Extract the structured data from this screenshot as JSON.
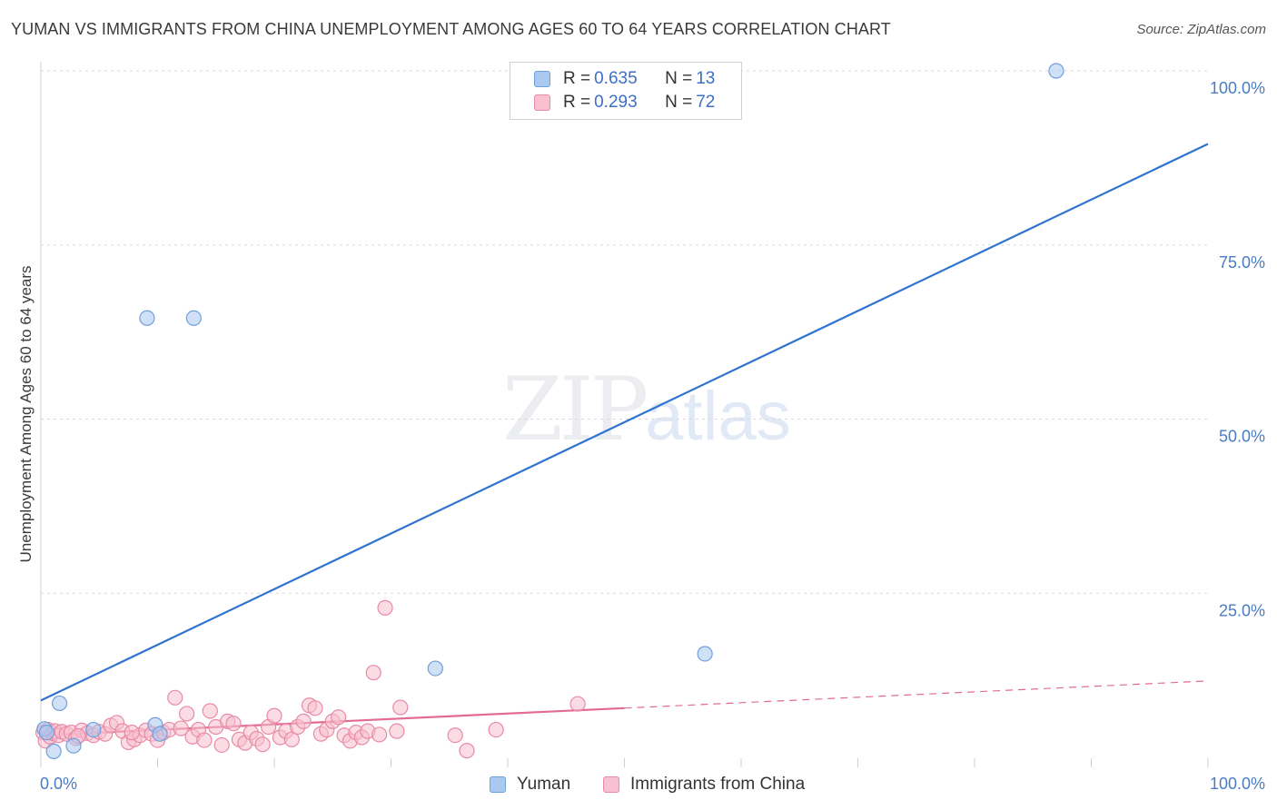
{
  "title": "YUMAN VS IMMIGRANTS FROM CHINA UNEMPLOYMENT AMONG AGES 60 TO 64 YEARS CORRELATION CHART",
  "source": "Source: ZipAtlas.com",
  "watermark": {
    "zip": "ZIP",
    "atlas": "atlas"
  },
  "legend": {
    "rows": [
      {
        "r_label": "R = ",
        "r_value": "0.635",
        "n_label": "N = ",
        "n_value": "13",
        "color": "#aac9f0",
        "border": "#6f9fdc"
      },
      {
        "r_label": "R = ",
        "r_value": "0.293",
        "n_label": "N = ",
        "n_value": "72",
        "color": "#f8c0d0",
        "border": "#e88aa6"
      }
    ]
  },
  "bottom_legend": [
    {
      "label": "Yuman",
      "color": "#aac9f0",
      "border": "#6f9fdc"
    },
    {
      "label": "Immigrants from China",
      "color": "#f8c0d0",
      "border": "#e88aa6"
    }
  ],
  "chart_data": {
    "type": "scatter",
    "title": "YUMAN VS IMMIGRANTS FROM CHINA UNEMPLOYMENT AMONG AGES 60 TO 64 YEARS CORRELATION CHART",
    "xlabel": "",
    "ylabel": "Unemployment Among Ages 60 to 64 years",
    "xlim": [
      0,
      100
    ],
    "ylim": [
      0,
      100
    ],
    "x_tick_labels": [
      "0.0%",
      "100.0%"
    ],
    "y_ticks": [
      25,
      50,
      75,
      100
    ],
    "y_tick_labels": [
      "25.0%",
      "50.0%",
      "75.0%",
      "100.0%"
    ],
    "series": [
      {
        "name": "Yuman",
        "color": "#6f9fdc",
        "fill": "#aac9f0",
        "line_color": "#2f73d0",
        "trend": {
          "x": [
            0,
            100
          ],
          "y": [
            9.6,
            89.5
          ],
          "dashed_from": null
        },
        "points": [
          [
            0.3,
            5.5
          ],
          [
            1.1,
            2.3
          ],
          [
            1.6,
            9.2
          ],
          [
            4.5,
            5.4
          ],
          [
            9.1,
            64.5
          ],
          [
            9.8,
            6.1
          ],
          [
            10.2,
            4.8
          ],
          [
            13.1,
            64.5
          ],
          [
            33.8,
            14.2
          ],
          [
            56.9,
            16.3
          ],
          [
            87.0,
            100.0
          ],
          [
            0.5,
            5.0
          ],
          [
            2.8,
            3.1
          ]
        ]
      },
      {
        "name": "Immigrants from China",
        "color": "#e88aa6",
        "fill": "#f8c0d0",
        "line_color": "#e36a92",
        "trend": {
          "x": [
            0,
            100
          ],
          "y": [
            4.6,
            12.4
          ],
          "dashed_from": 50
        },
        "points": [
          [
            0.2,
            5.0
          ],
          [
            0.4,
            3.8
          ],
          [
            0.6,
            5.4
          ],
          [
            0.8,
            4.4
          ],
          [
            1.0,
            4.9
          ],
          [
            1.2,
            5.2
          ],
          [
            1.5,
            4.6
          ],
          [
            1.8,
            5.1
          ],
          [
            2.2,
            4.8
          ],
          [
            2.6,
            5.0
          ],
          [
            3.0,
            4.2
          ],
          [
            3.5,
            5.3
          ],
          [
            4.0,
            4.9
          ],
          [
            4.5,
            4.6
          ],
          [
            5.0,
            5.1
          ],
          [
            5.5,
            4.8
          ],
          [
            6.0,
            6.0
          ],
          [
            6.5,
            6.4
          ],
          [
            7.0,
            5.2
          ],
          [
            7.5,
            3.6
          ],
          [
            8.0,
            4.0
          ],
          [
            8.5,
            4.6
          ],
          [
            9.0,
            5.3
          ],
          [
            9.5,
            4.8
          ],
          [
            10.0,
            3.9
          ],
          [
            10.5,
            5.0
          ],
          [
            11.0,
            5.4
          ],
          [
            11.5,
            10.0
          ],
          [
            12.0,
            5.6
          ],
          [
            12.5,
            7.7
          ],
          [
            13.0,
            4.4
          ],
          [
            13.5,
            5.4
          ],
          [
            14.0,
            3.9
          ],
          [
            14.5,
            8.1
          ],
          [
            15.0,
            5.8
          ],
          [
            15.5,
            3.2
          ],
          [
            16.0,
            6.6
          ],
          [
            16.5,
            6.3
          ],
          [
            17.0,
            4.0
          ],
          [
            17.5,
            3.5
          ],
          [
            18.0,
            5.0
          ],
          [
            18.5,
            4.1
          ],
          [
            19.0,
            3.3
          ],
          [
            19.5,
            5.8
          ],
          [
            20.0,
            7.4
          ],
          [
            20.5,
            4.3
          ],
          [
            21.0,
            5.2
          ],
          [
            21.5,
            4.0
          ],
          [
            22.0,
            5.8
          ],
          [
            22.5,
            6.6
          ],
          [
            23.0,
            8.9
          ],
          [
            23.5,
            8.5
          ],
          [
            24.0,
            4.8
          ],
          [
            24.5,
            5.4
          ],
          [
            25.0,
            6.6
          ],
          [
            25.5,
            7.2
          ],
          [
            26.0,
            4.6
          ],
          [
            26.5,
            3.8
          ],
          [
            27.0,
            5.0
          ],
          [
            27.5,
            4.3
          ],
          [
            28.0,
            5.2
          ],
          [
            28.5,
            13.6
          ],
          [
            29.0,
            4.7
          ],
          [
            29.5,
            22.9
          ],
          [
            30.5,
            5.2
          ],
          [
            30.8,
            8.6
          ],
          [
            35.5,
            4.6
          ],
          [
            36.5,
            2.4
          ],
          [
            39.0,
            5.4
          ],
          [
            46.0,
            9.1
          ],
          [
            3.2,
            4.5
          ],
          [
            7.8,
            5.0
          ]
        ]
      }
    ]
  }
}
